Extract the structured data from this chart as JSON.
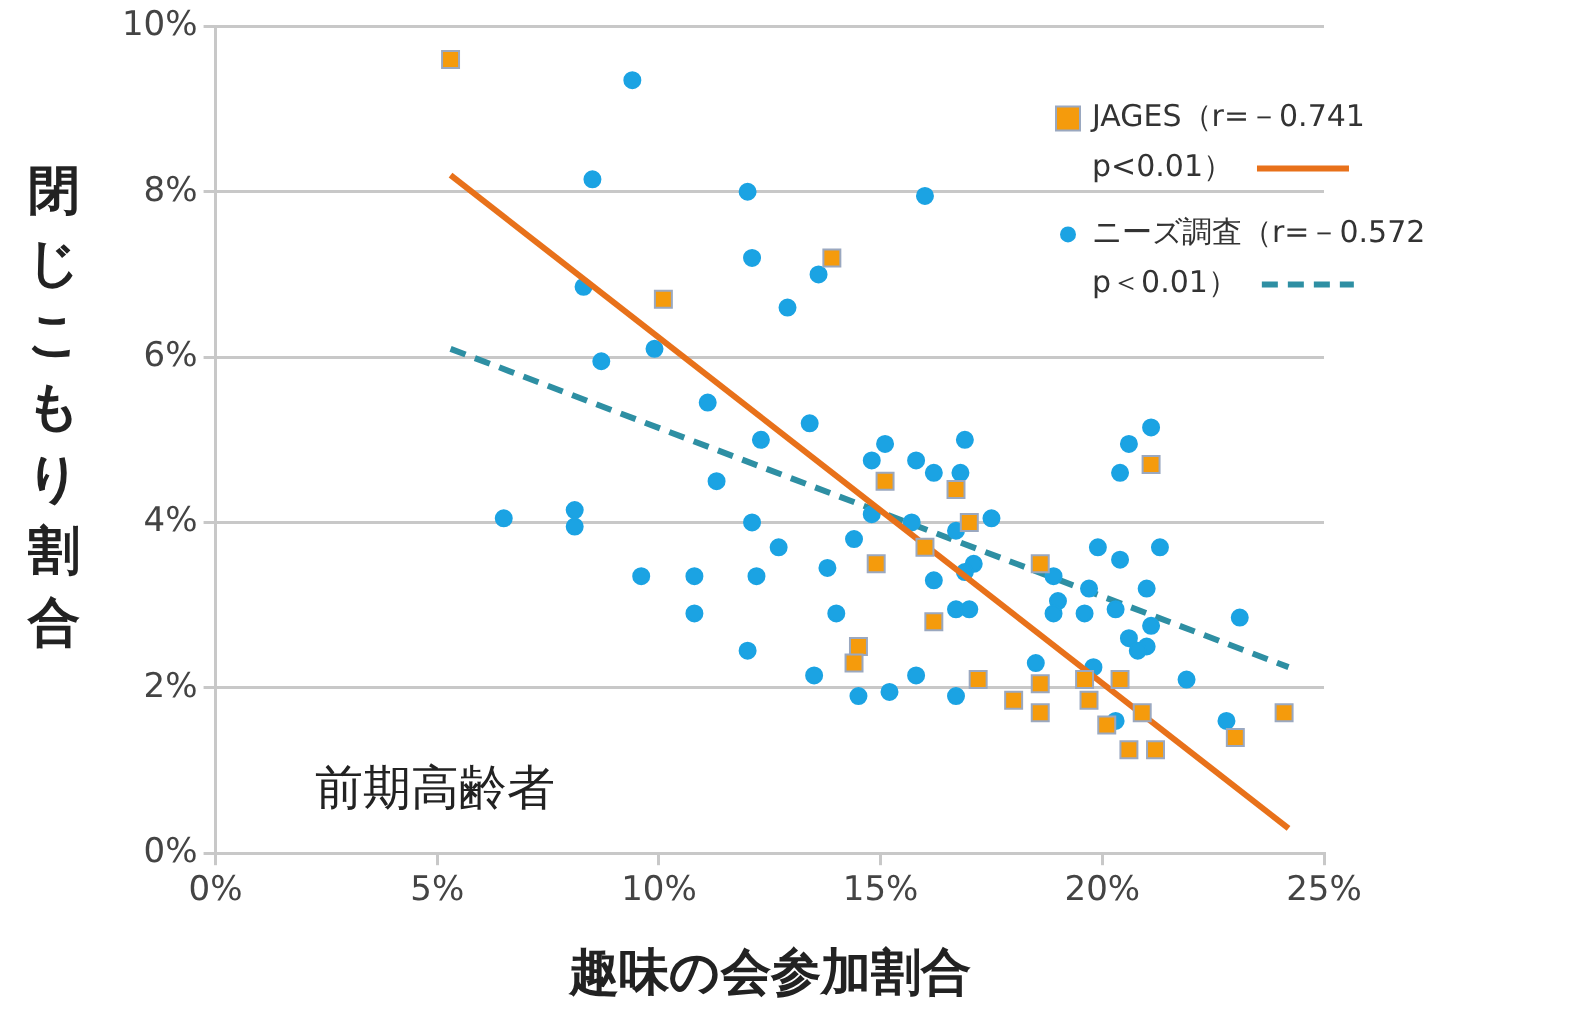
{
  "chart_data": {
    "type": "scatter",
    "xlabel": "趣味の会参加割合",
    "ylabel": "閉じこもり割合",
    "xlim": [
      0,
      25
    ],
    "xticks": [
      {
        "value": 0,
        "label": "0%"
      },
      {
        "value": 5,
        "label": "5%"
      },
      {
        "value": 10,
        "label": "10%"
      },
      {
        "value": 15,
        "label": "15%"
      },
      {
        "value": 20,
        "label": "20%"
      },
      {
        "value": 25,
        "label": "25%"
      }
    ],
    "ylim": [
      0,
      10
    ],
    "yticks": [
      {
        "value": 0,
        "label": "0%"
      },
      {
        "value": 2,
        "label": "2%"
      },
      {
        "value": 4,
        "label": "4%"
      },
      {
        "value": 6,
        "label": "6%"
      },
      {
        "value": 8,
        "label": "8%"
      },
      {
        "value": 10,
        "label": "10%"
      }
    ],
    "grid": "y",
    "legend": "top right",
    "annotations": [
      "前期高齢者"
    ],
    "series": [
      {
        "name": "JAGES（r=－0.741 p<0.01）",
        "marker": "square",
        "color": "#f59b0c",
        "x": [
          5.3,
          10.1,
          13.9,
          15.1,
          16.7,
          17.0,
          16.0,
          14.9,
          18.6,
          16.2,
          14.5,
          14.4,
          17.2,
          18.0,
          18.6,
          18.6,
          19.6,
          20.4,
          19.7,
          20.1,
          20.9,
          20.6,
          21.2,
          23.0,
          24.1,
          21.1
        ],
        "values": [
          9.6,
          6.7,
          7.2,
          4.5,
          4.4,
          4.0,
          3.7,
          3.5,
          3.5,
          2.8,
          2.5,
          2.3,
          2.1,
          1.85,
          2.05,
          1.7,
          2.1,
          2.1,
          1.85,
          1.55,
          1.7,
          1.25,
          1.25,
          1.4,
          1.7,
          4.7
        ]
      },
      {
        "type": "line",
        "marker": "none",
        "line_style": "solid",
        "color": "#e8711a",
        "x": [
          5.3,
          24.2
        ],
        "values": [
          8.2,
          0.3
        ]
      },
      {
        "name": "ニーズ調査（r=－0.572 p＜0.01）",
        "marker": "circle",
        "color": "#1ba3e3",
        "x": [
          9.4,
          8.5,
          12.0,
          12.1,
          8.3,
          8.7,
          9.9,
          11.1,
          12.3,
          16.0,
          13.6,
          12.9,
          11.3,
          6.5,
          8.1,
          8.1,
          12.1,
          12.7,
          9.6,
          10.8,
          12.2,
          10.8,
          12.0,
          13.4,
          15.1,
          14.8,
          15.8,
          16.9,
          16.2,
          16.8,
          14.8,
          15.7,
          16.7,
          17.5,
          14.4,
          13.8,
          17.1,
          16.9,
          16.2,
          14.0,
          16.7,
          17.0,
          18.9,
          19.0,
          18.9,
          19.6,
          19.7,
          19.9,
          20.4,
          21.3,
          21.0,
          20.3,
          21.1,
          20.6,
          21.0,
          20.8,
          20.4,
          20.6,
          21.1,
          18.5,
          19.8,
          13.5,
          14.5,
          15.2,
          15.8,
          16.7,
          20.3,
          21.9,
          22.8,
          23.1
        ],
        "values": [
          9.35,
          8.15,
          8.0,
          7.2,
          6.85,
          5.95,
          6.1,
          5.45,
          5.0,
          7.95,
          7.0,
          6.6,
          4.5,
          4.05,
          4.15,
          3.95,
          4.0,
          3.7,
          3.35,
          3.35,
          3.35,
          2.9,
          2.45,
          5.2,
          4.95,
          4.75,
          4.75,
          5.0,
          4.6,
          4.6,
          4.1,
          4.0,
          3.9,
          4.05,
          3.8,
          3.45,
          3.5,
          3.4,
          3.3,
          2.9,
          2.95,
          2.95,
          3.35,
          3.05,
          2.9,
          2.9,
          3.2,
          3.7,
          3.55,
          3.7,
          3.2,
          2.95,
          2.75,
          2.6,
          2.5,
          2.45,
          4.6,
          4.95,
          5.15,
          2.3,
          2.25,
          2.15,
          1.9,
          1.95,
          2.15,
          1.9,
          1.6,
          2.1,
          1.6,
          2.85
        ]
      },
      {
        "type": "line",
        "marker": "none",
        "line_style": "dashed",
        "color": "#2e8fa3",
        "x": [
          5.3,
          24.2
        ],
        "values": [
          6.1,
          2.25
        ]
      }
    ]
  }
}
